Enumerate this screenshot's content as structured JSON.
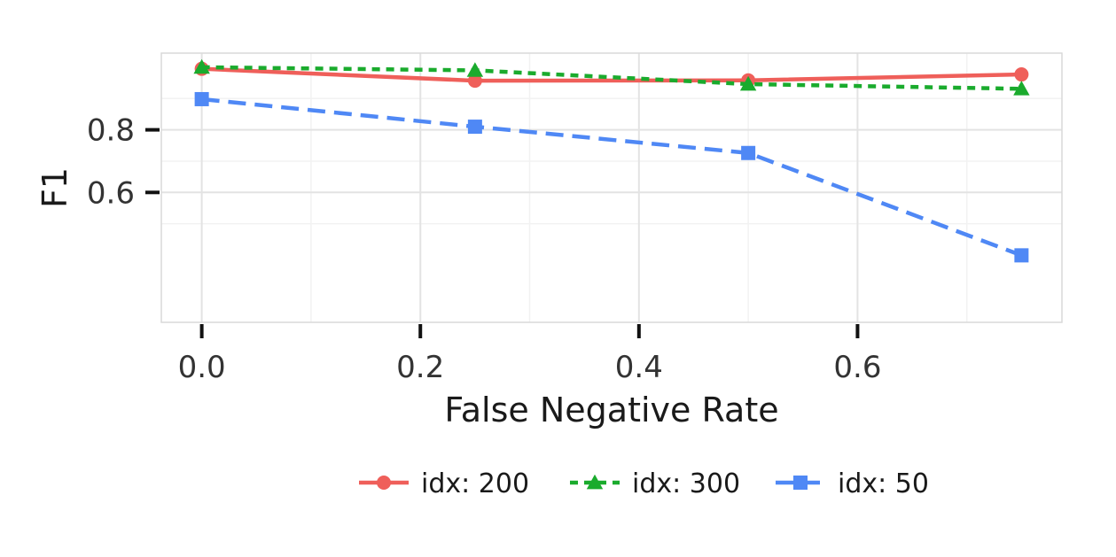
{
  "chart_data": {
    "type": "line",
    "xlabel": "False Negative Rate",
    "ylabel": "F1",
    "xlim": [
      -0.037,
      0.787
    ],
    "ylim": [
      0.185,
      1.045
    ],
    "x_ticks": [
      {
        "value": 0.0,
        "label": "0.0"
      },
      {
        "value": 0.2,
        "label": "0.2"
      },
      {
        "value": 0.4,
        "label": "0.4"
      },
      {
        "value": 0.6,
        "label": "0.6"
      }
    ],
    "y_ticks": [
      {
        "value": 0.6,
        "label": "0.6"
      },
      {
        "value": 0.8,
        "label": "0.8"
      }
    ],
    "grid": true,
    "legend_position": "bottom",
    "series": [
      {
        "name": "idx: 200",
        "color": "#ef5f5a",
        "marker": "circle",
        "dash": "solid",
        "x": [
          0.0,
          0.25,
          0.5,
          0.75
        ],
        "y": [
          0.995,
          0.957,
          0.958,
          0.977
        ]
      },
      {
        "name": "idx: 300",
        "color": "#1aab2d",
        "marker": "triangle",
        "dash": "dotted",
        "x": [
          0.0,
          0.25,
          0.5,
          0.75
        ],
        "y": [
          1.0,
          0.99,
          0.946,
          0.931
        ]
      },
      {
        "name": "idx: 50",
        "color": "#4f88f5",
        "marker": "square",
        "dash": "dashed",
        "x": [
          0.0,
          0.25,
          0.5,
          0.75
        ],
        "y": [
          0.898,
          0.81,
          0.726,
          0.399
        ]
      }
    ]
  }
}
